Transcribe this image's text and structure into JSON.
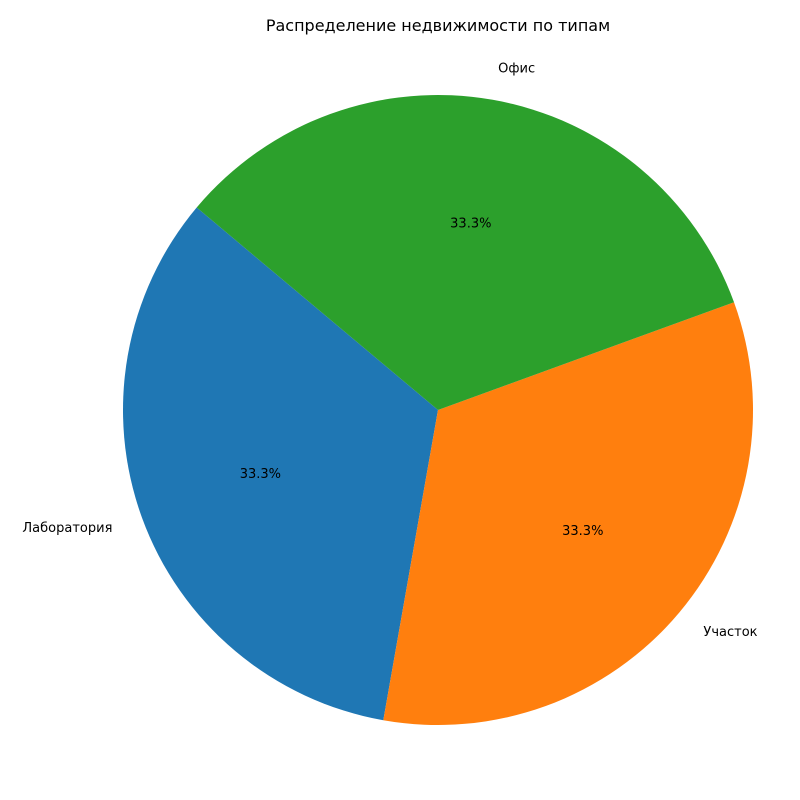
{
  "chart_data": {
    "type": "pie",
    "title": "Распределение недвижимости по типам",
    "start_angle_deg": 140,
    "direction": "counterclockwise",
    "slices": [
      {
        "label": "Лаборатория",
        "value": 1,
        "percent_label": "33.3%",
        "color": "#1f77b4"
      },
      {
        "label": "Участок",
        "value": 1,
        "percent_label": "33.3%",
        "color": "#ff7f0e"
      },
      {
        "label": "Офис",
        "value": 1,
        "percent_label": "33.3%",
        "color": "#2ca02c"
      }
    ]
  }
}
